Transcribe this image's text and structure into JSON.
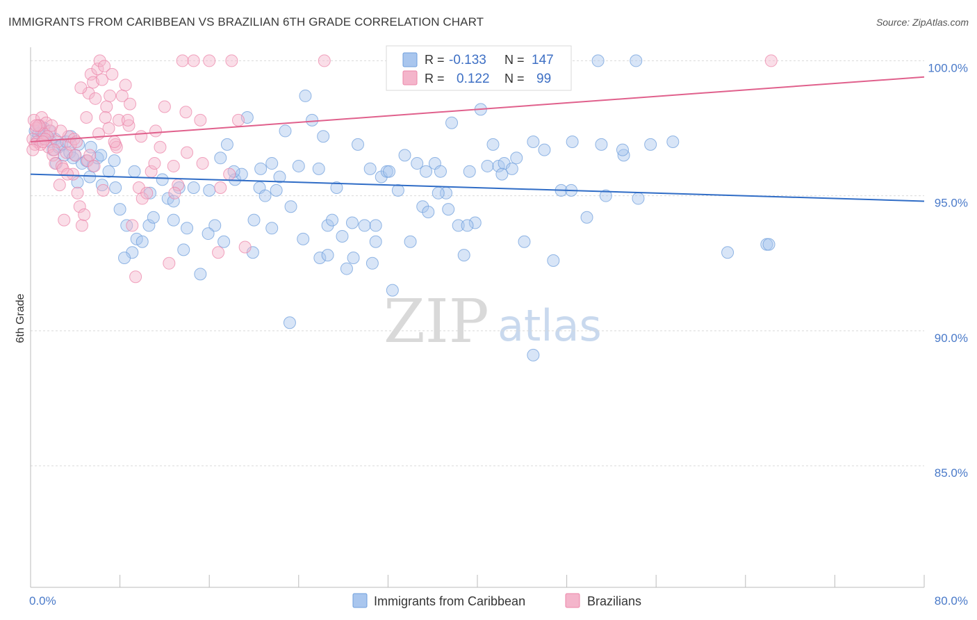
{
  "title": "IMMIGRANTS FROM CARIBBEAN VS BRAZILIAN 6TH GRADE CORRELATION CHART",
  "source": "Source: ZipAtlas.com",
  "watermark": {
    "zip": "ZIP",
    "atlas": "atlas"
  },
  "legend": {
    "r_label": "R =",
    "n_label": "N =",
    "rows": [
      {
        "r": "-0.133",
        "n": "147",
        "color": "#a9c6ee"
      },
      {
        "r": "0.122",
        "n": "99",
        "color": "#f4b5cb"
      }
    ]
  },
  "bottom_legend": [
    {
      "label": "Immigrants from Caribbean",
      "color": "#a9c6ee"
    },
    {
      "label": "Brazilians",
      "color": "#f4b5cb"
    }
  ],
  "chart_data": {
    "type": "scatter",
    "title": "IMMIGRANTS FROM CARIBBEAN VS BRAZILIAN 6TH GRADE CORRELATION CHART",
    "xlabel": "",
    "ylabel": "6th Grade",
    "xlim": [
      0,
      80
    ],
    "ylim": [
      80.5,
      100.5
    ],
    "x_tick_labels": [
      "0.0%",
      "80.0%"
    ],
    "y_ticks": [
      85,
      90,
      95,
      100
    ],
    "y_tick_labels": [
      "85.0%",
      "90.0%",
      "95.0%",
      "100.0%"
    ],
    "grid": "horizontal dashed",
    "legend_position": "top-center",
    "colors": {
      "caribbean": "#6f9fdc",
      "caribbean_fill": "#a9c6ee",
      "brazilians": "#ec86aa",
      "brazilians_fill": "#f4b5cb",
      "blue_line": "#2f6cc6",
      "pink_line": "#e0608c"
    },
    "series": [
      {
        "name": "Immigrants from Caribbean",
        "r": -0.133,
        "n": 147,
        "trend": {
          "x": [
            0,
            80
          ],
          "y": [
            95.8,
            94.8
          ]
        },
        "points": [
          [
            0.4,
            97.4
          ],
          [
            0.6,
            97.1
          ],
          [
            0.8,
            97.6
          ],
          [
            1.0,
            97.3
          ],
          [
            1.2,
            97.5
          ],
          [
            1.5,
            97.2
          ],
          [
            1.8,
            97.0
          ],
          [
            2.0,
            96.7
          ],
          [
            2.2,
            97.1
          ],
          [
            2.5,
            96.8
          ],
          [
            2.8,
            96.9
          ],
          [
            3.0,
            96.5
          ],
          [
            3.2,
            97.0
          ],
          [
            3.5,
            96.6
          ],
          [
            3.8,
            96.4
          ],
          [
            4.0,
            96.5
          ],
          [
            4.3,
            96.9
          ],
          [
            4.6,
            96.2
          ],
          [
            5.0,
            96.3
          ],
          [
            5.3,
            95.7
          ],
          [
            5.6,
            96.1
          ],
          [
            6.0,
            96.4
          ],
          [
            6.4,
            95.4
          ],
          [
            7.0,
            95.9
          ],
          [
            7.5,
            96.3
          ],
          [
            8.0,
            94.5
          ],
          [
            8.6,
            93.9
          ],
          [
            9.1,
            92.9
          ],
          [
            9.5,
            93.4
          ],
          [
            10.0,
            93.3
          ],
          [
            10.6,
            93.9
          ],
          [
            11.0,
            94.2
          ],
          [
            11.8,
            95.6
          ],
          [
            12.3,
            94.9
          ],
          [
            12.8,
            94.1
          ],
          [
            13.3,
            95.3
          ],
          [
            14.0,
            93.8
          ],
          [
            14.6,
            95.3
          ],
          [
            15.2,
            92.1
          ],
          [
            16.0,
            95.2
          ],
          [
            16.5,
            93.9
          ],
          [
            17.0,
            96.4
          ],
          [
            17.6,
            96.9
          ],
          [
            18.3,
            95.6
          ],
          [
            18.9,
            95.8
          ],
          [
            19.4,
            97.9
          ],
          [
            20.0,
            94.1
          ],
          [
            20.5,
            95.3
          ],
          [
            21.0,
            95.0
          ],
          [
            21.6,
            96.2
          ],
          [
            22.3,
            95.7
          ],
          [
            22.8,
            97.4
          ],
          [
            23.3,
            94.6
          ],
          [
            24.0,
            96.1
          ],
          [
            24.6,
            98.7
          ],
          [
            25.2,
            97.8
          ],
          [
            25.8,
            96.0
          ],
          [
            26.2,
            97.2
          ],
          [
            26.6,
            93.9
          ],
          [
            27.0,
            94.1
          ],
          [
            27.4,
            95.3
          ],
          [
            27.9,
            93.5
          ],
          [
            28.3,
            92.3
          ],
          [
            28.8,
            94.0
          ],
          [
            29.3,
            96.9
          ],
          [
            29.9,
            93.9
          ],
          [
            30.4,
            96.0
          ],
          [
            30.9,
            93.3
          ],
          [
            31.4,
            95.7
          ],
          [
            31.9,
            95.9
          ],
          [
            32.4,
            91.5
          ],
          [
            32.9,
            95.2
          ],
          [
            33.5,
            96.5
          ],
          [
            34.0,
            93.3
          ],
          [
            34.6,
            96.2
          ],
          [
            35.1,
            94.6
          ],
          [
            35.6,
            94.4
          ],
          [
            36.2,
            96.2
          ],
          [
            36.7,
            95.9
          ],
          [
            37.2,
            95.1
          ],
          [
            37.7,
            97.7
          ],
          [
            38.3,
            93.9
          ],
          [
            38.8,
            92.8
          ],
          [
            39.3,
            95.9
          ],
          [
            39.8,
            94.0
          ],
          [
            40.3,
            98.2
          ],
          [
            40.9,
            96.1
          ],
          [
            41.4,
            96.9
          ],
          [
            41.9,
            96.1
          ],
          [
            42.4,
            96.2
          ],
          [
            43.1,
            96.0
          ],
          [
            44.2,
            93.3
          ],
          [
            45.0,
            97.0
          ],
          [
            46.0,
            96.7
          ],
          [
            46.8,
            92.6
          ],
          [
            47.5,
            95.2
          ],
          [
            48.5,
            97.0
          ],
          [
            49.8,
            94.2
          ],
          [
            50.8,
            100.0
          ],
          [
            51.5,
            95.0
          ],
          [
            53.1,
            96.5
          ],
          [
            54.2,
            100.0
          ],
          [
            55.5,
            96.9
          ],
          [
            62.4,
            92.9
          ],
          [
            65.9,
            93.2
          ],
          [
            66.1,
            93.2
          ],
          [
            45.0,
            89.1
          ],
          [
            30.9,
            93.9
          ],
          [
            23.2,
            90.3
          ],
          [
            21.6,
            93.8
          ],
          [
            18.2,
            95.9
          ],
          [
            13.7,
            93.0
          ],
          [
            12.8,
            94.8
          ],
          [
            10.7,
            95.1
          ],
          [
            9.3,
            95.9
          ],
          [
            8.4,
            92.7
          ],
          [
            7.6,
            95.3
          ],
          [
            5.4,
            96.8
          ],
          [
            4.2,
            95.5
          ],
          [
            3.6,
            97.2
          ],
          [
            2.3,
            96.2
          ],
          [
            1.7,
            97.4
          ],
          [
            1.1,
            97.1
          ],
          [
            0.7,
            97.3
          ],
          [
            6.3,
            96.5
          ],
          [
            15.9,
            93.6
          ],
          [
            17.3,
            93.3
          ],
          [
            19.9,
            92.9
          ],
          [
            25.9,
            92.7
          ],
          [
            28.9,
            92.7
          ],
          [
            32.1,
            95.9
          ],
          [
            35.4,
            95.9
          ],
          [
            37.4,
            94.5
          ],
          [
            39.1,
            93.9
          ],
          [
            43.5,
            96.4
          ],
          [
            48.4,
            95.2
          ],
          [
            51.1,
            96.9
          ],
          [
            54.4,
            94.9
          ],
          [
            57.5,
            97.0
          ],
          [
            20.6,
            96.0
          ],
          [
            22.0,
            95.2
          ],
          [
            24.4,
            93.4
          ],
          [
            26.6,
            92.8
          ],
          [
            30.6,
            92.5
          ],
          [
            36.5,
            95.1
          ],
          [
            42.2,
            95.8
          ],
          [
            53.0,
            96.7
          ]
        ]
      },
      {
        "name": "Brazilians",
        "r": 0.122,
        "n": 99,
        "trend": {
          "x": [
            0,
            80
          ],
          "y": [
            97.0,
            99.4
          ]
        },
        "points": [
          [
            0.2,
            97.1
          ],
          [
            0.3,
            97.8
          ],
          [
            0.5,
            97.5
          ],
          [
            0.6,
            97.0
          ],
          [
            0.8,
            97.6
          ],
          [
            1.0,
            97.9
          ],
          [
            1.2,
            97.3
          ],
          [
            1.4,
            97.7
          ],
          [
            1.6,
            96.8
          ],
          [
            1.8,
            97.4
          ],
          [
            2.0,
            96.5
          ],
          [
            2.2,
            96.2
          ],
          [
            2.4,
            97.0
          ],
          [
            2.6,
            95.4
          ],
          [
            2.8,
            96.1
          ],
          [
            3.0,
            94.1
          ],
          [
            3.2,
            96.6
          ],
          [
            3.4,
            97.2
          ],
          [
            3.6,
            96.9
          ],
          [
            3.8,
            95.8
          ],
          [
            4.0,
            96.5
          ],
          [
            4.2,
            95.1
          ],
          [
            4.4,
            94.6
          ],
          [
            4.6,
            93.9
          ],
          [
            4.8,
            94.3
          ],
          [
            5.0,
            97.9
          ],
          [
            5.2,
            98.8
          ],
          [
            5.4,
            99.5
          ],
          [
            5.6,
            99.2
          ],
          [
            5.8,
            98.6
          ],
          [
            6.0,
            99.7
          ],
          [
            6.2,
            100.0
          ],
          [
            6.4,
            99.3
          ],
          [
            6.6,
            99.8
          ],
          [
            6.8,
            98.3
          ],
          [
            7.0,
            97.5
          ],
          [
            7.3,
            99.5
          ],
          [
            7.6,
            96.9
          ],
          [
            7.9,
            97.8
          ],
          [
            8.2,
            98.7
          ],
          [
            8.5,
            99.1
          ],
          [
            8.8,
            97.6
          ],
          [
            9.1,
            93.9
          ],
          [
            9.4,
            92.0
          ],
          [
            9.7,
            95.3
          ],
          [
            10.0,
            94.9
          ],
          [
            10.4,
            95.1
          ],
          [
            10.8,
            95.9
          ],
          [
            11.2,
            97.4
          ],
          [
            11.6,
            96.8
          ],
          [
            12.0,
            98.3
          ],
          [
            12.4,
            92.5
          ],
          [
            12.8,
            96.1
          ],
          [
            13.2,
            95.4
          ],
          [
            13.6,
            100.0
          ],
          [
            14.0,
            96.6
          ],
          [
            14.6,
            100.0
          ],
          [
            15.2,
            97.8
          ],
          [
            16.0,
            100.0
          ],
          [
            17.0,
            95.3
          ],
          [
            17.8,
            95.8
          ],
          [
            18.0,
            100.0
          ],
          [
            18.6,
            97.8
          ],
          [
            19.2,
            93.1
          ],
          [
            26.3,
            100.0
          ],
          [
            66.3,
            100.0
          ],
          [
            0.4,
            96.9
          ],
          [
            1.5,
            97.2
          ],
          [
            2.7,
            97.4
          ],
          [
            3.9,
            97.1
          ],
          [
            5.1,
            96.3
          ],
          [
            6.1,
            97.3
          ],
          [
            7.1,
            98.7
          ],
          [
            0.9,
            96.9
          ],
          [
            1.9,
            97.6
          ],
          [
            2.9,
            96.0
          ],
          [
            4.1,
            97.0
          ],
          [
            5.3,
            96.5
          ],
          [
            6.5,
            95.2
          ],
          [
            7.7,
            96.8
          ],
          [
            8.9,
            98.4
          ],
          [
            0.2,
            96.7
          ],
          [
            0.7,
            97.6
          ],
          [
            1.3,
            97.1
          ],
          [
            2.1,
            96.7
          ],
          [
            3.3,
            95.8
          ],
          [
            4.5,
            99.0
          ],
          [
            5.7,
            96.1
          ],
          [
            6.7,
            97.9
          ],
          [
            7.5,
            97.0
          ],
          [
            8.7,
            97.8
          ],
          [
            9.9,
            97.2
          ],
          [
            11.1,
            96.2
          ],
          [
            12.9,
            95.1
          ],
          [
            13.9,
            98.1
          ],
          [
            15.4,
            96.2
          ],
          [
            16.8,
            92.9
          ],
          [
            0.5,
            97.6
          ],
          [
            1.1,
            97.0
          ]
        ]
      }
    ]
  }
}
